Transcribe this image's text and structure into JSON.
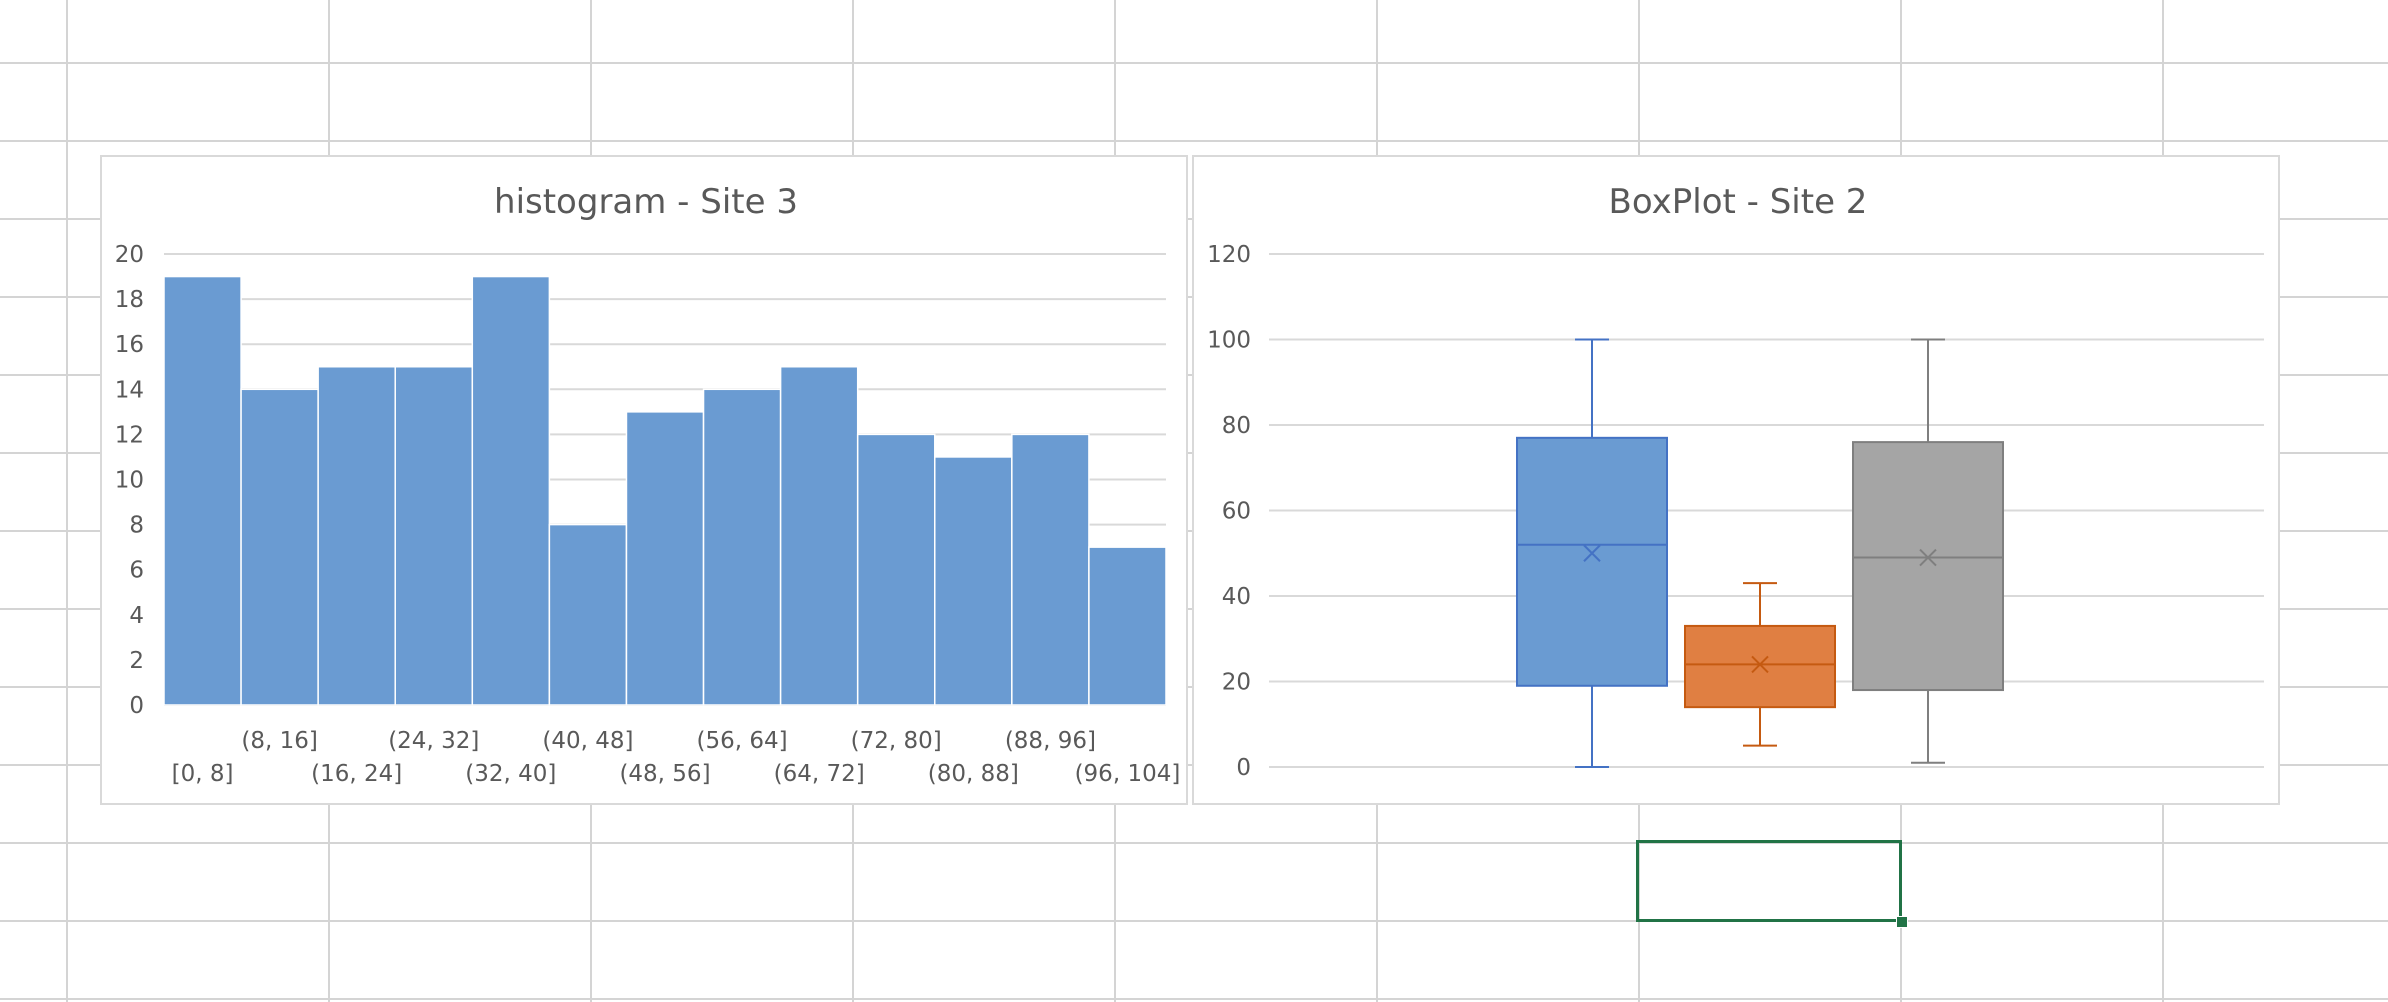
{
  "chart_data": [
    {
      "type": "bar",
      "title": "histogram - Site 3",
      "categories": [
        "[0, 8]",
        "(8, 16]",
        "(16, 24]",
        "(24, 32]",
        "(32, 40]",
        "(40, 48]",
        "(48, 56]",
        "(56, 64]",
        "(64, 72]",
        "(72, 80]",
        "(80, 88]",
        "(88, 96]",
        "(96, 104]"
      ],
      "values": [
        19,
        14,
        15,
        15,
        19,
        8,
        13,
        14,
        15,
        12,
        11,
        12,
        7
      ],
      "ylim": [
        0,
        20
      ],
      "yticks": [
        0,
        2,
        4,
        6,
        8,
        10,
        12,
        14,
        16,
        18,
        20
      ],
      "grid": true,
      "bar_color": "#6a9bd2"
    },
    {
      "type": "box",
      "title": "BoxPlot - Site 2",
      "ylim": [
        0,
        120
      ],
      "yticks": [
        0,
        20,
        40,
        60,
        80,
        100,
        120
      ],
      "grid": true,
      "series": [
        {
          "min": 0,
          "q1": 19,
          "median": 52,
          "mean": 50,
          "q3": 77,
          "max": 100,
          "color": "#6a9bd2",
          "edge": "#4472c4"
        },
        {
          "min": 5,
          "q1": 14,
          "median": 24,
          "mean": 24,
          "q3": 33,
          "max": 43,
          "color": "#e07f42",
          "edge": "#c55a11"
        },
        {
          "min": 1,
          "q1": 18,
          "median": 49,
          "mean": 49,
          "q3": 76,
          "max": 100,
          "color": "#a5a5a5",
          "edge": "#7f7f7f"
        }
      ]
    }
  ]
}
